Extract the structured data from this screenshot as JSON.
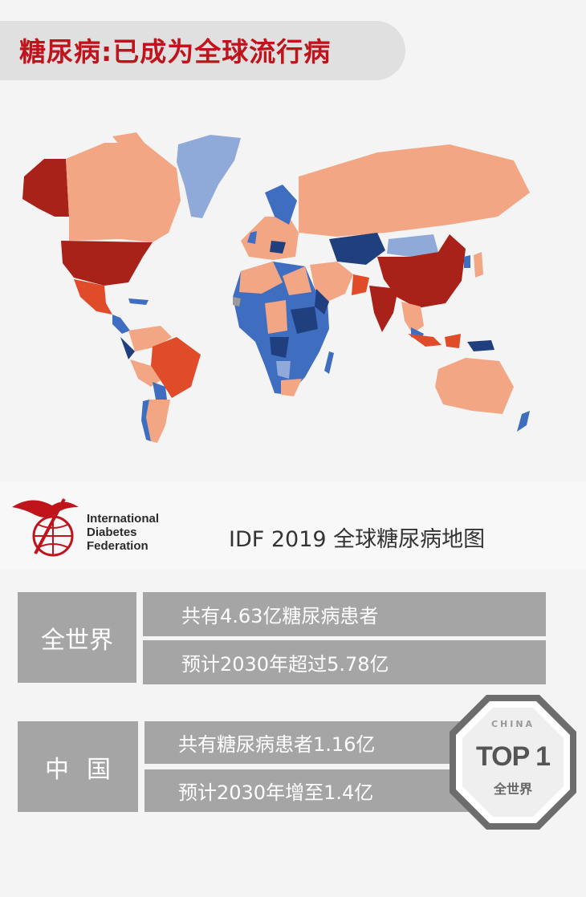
{
  "header": {
    "title": "糖尿病:已成为全球流行病"
  },
  "map": {
    "icon": "world-map",
    "colors": {
      "very_high": "#a8221a",
      "high": "#e04b2a",
      "medium": "#f2a683",
      "low": "#3f6ec1",
      "very_low": "#8fa9d9",
      "lowest": "#1f3f7f",
      "no_data": "#9a9a9a"
    },
    "caption": "IDF 2019 全球糖尿病地图"
  },
  "logo": {
    "icon": "idf-hummingbird-globe-logo",
    "color": "#c0141d",
    "lines": [
      "International",
      "Diabetes",
      "Federation"
    ]
  },
  "world": {
    "label": "全世界",
    "line1": "共有4.63亿糖尿病患者",
    "line2": "预计2030年超过5.78亿"
  },
  "china": {
    "label": "中国",
    "line1": "共有糖尿病患者1.16亿",
    "line2": "预计2030年增至1.4亿"
  },
  "badge": {
    "icon": "octagon-badge",
    "top_text": "CHINA",
    "main_text": "TOP 1",
    "bottom_text": "全世界"
  }
}
